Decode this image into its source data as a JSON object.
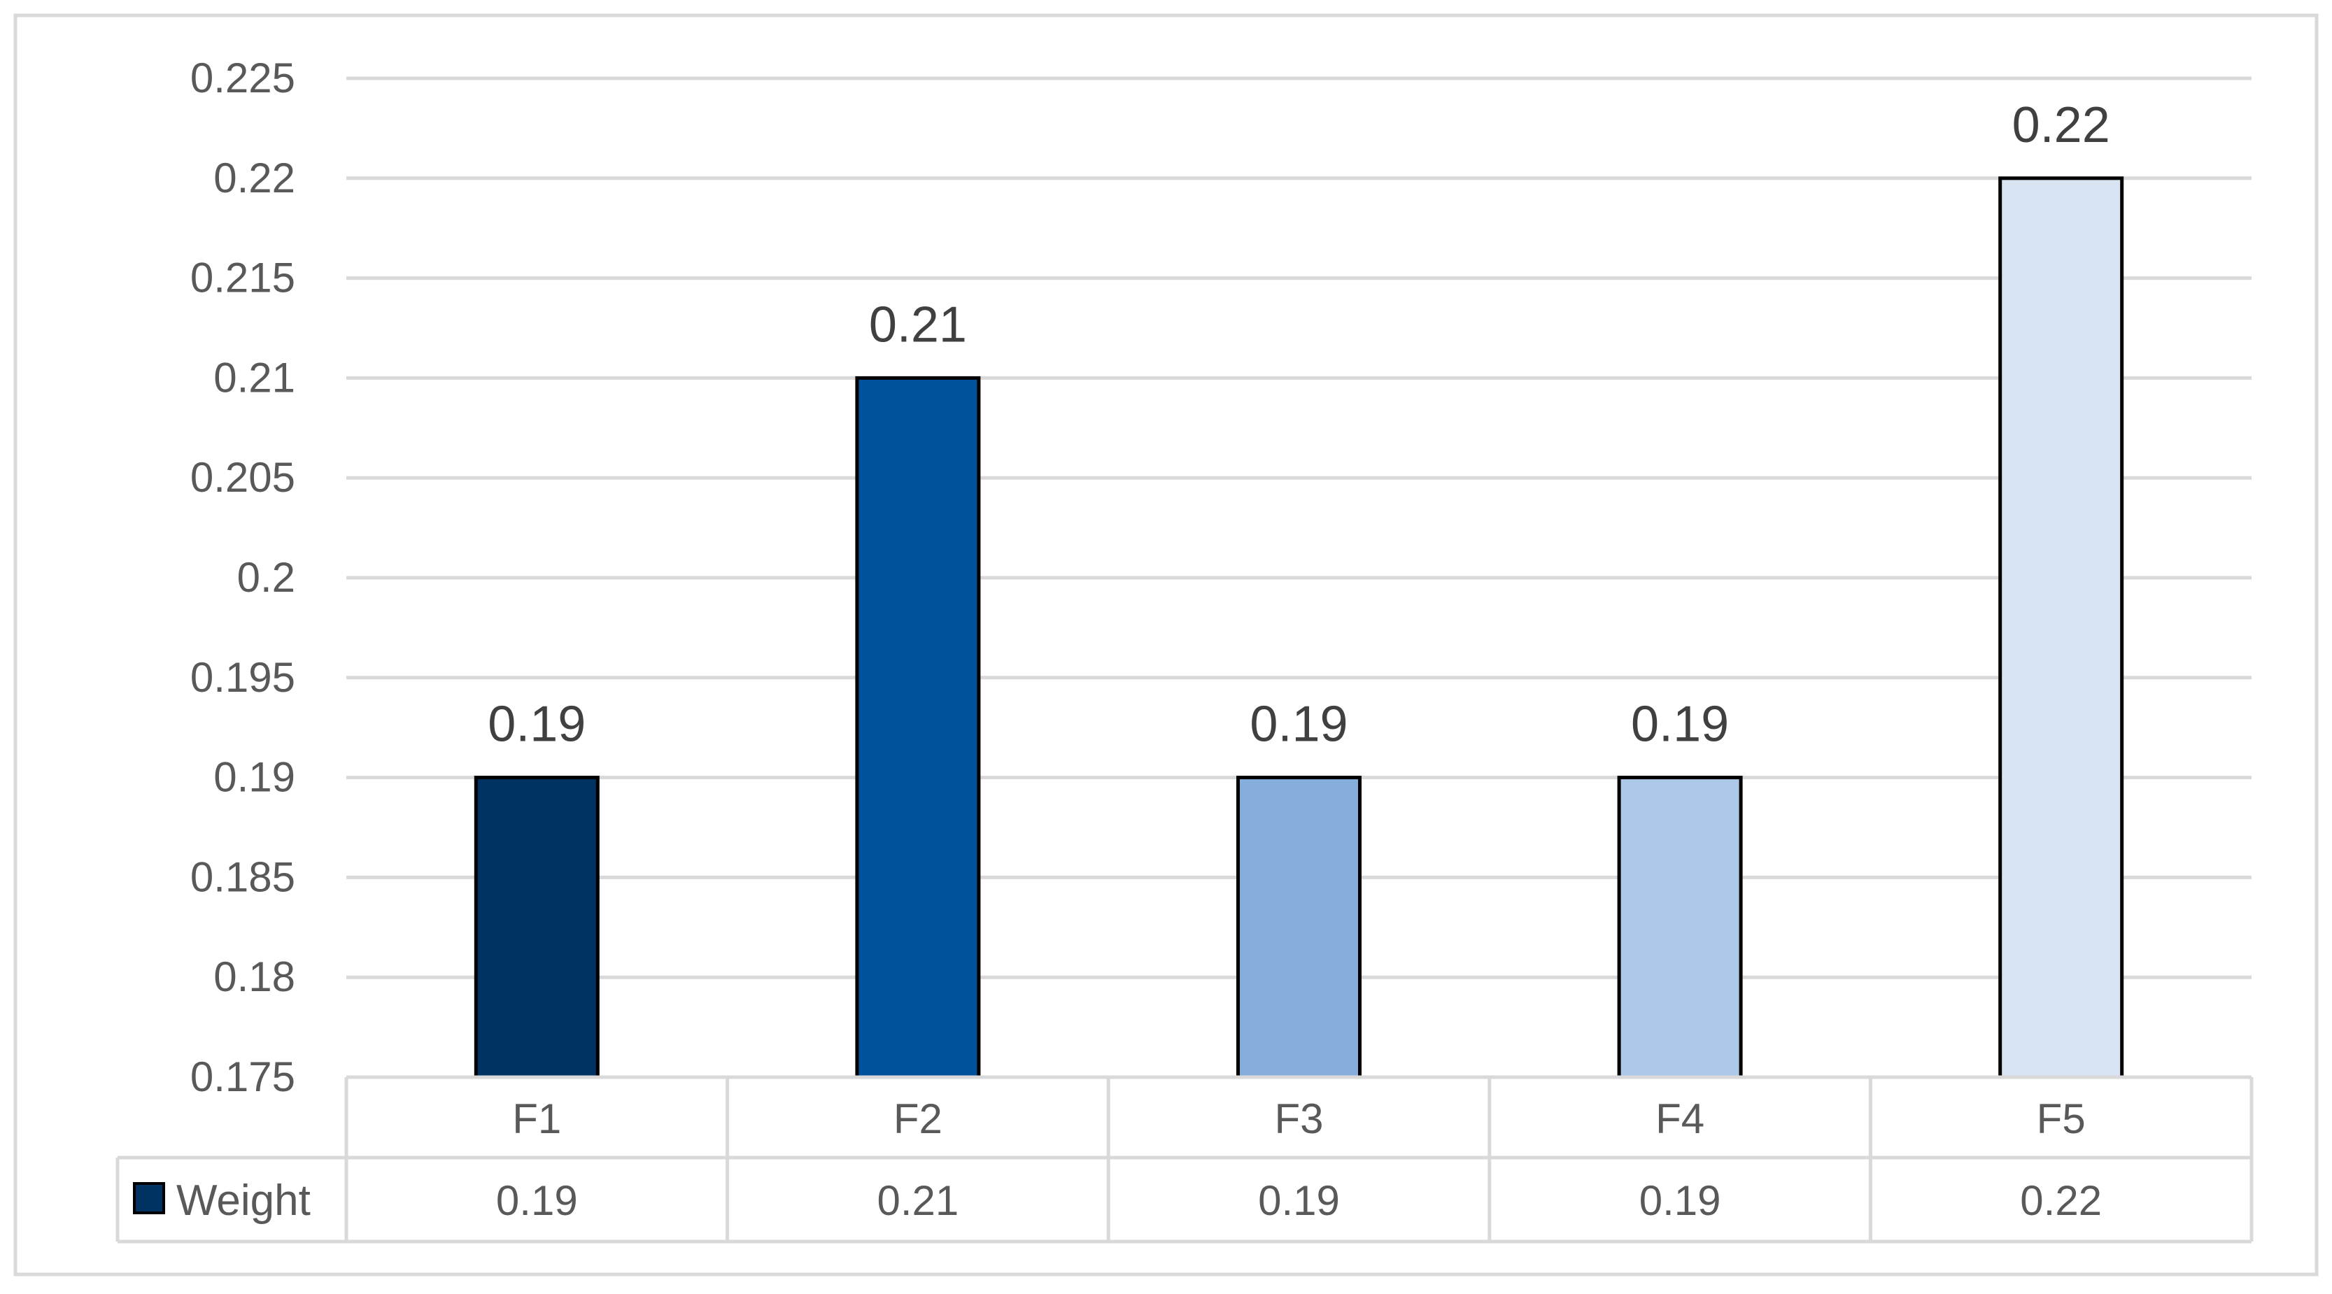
{
  "chart_data": {
    "type": "bar",
    "categories": [
      "F1",
      "F2",
      "F3",
      "F4",
      "F5"
    ],
    "series": [
      {
        "name": "Weight",
        "values": [
          0.19,
          0.21,
          0.19,
          0.19,
          0.22
        ]
      }
    ],
    "data_labels": [
      "0.19",
      "0.21",
      "0.19",
      "0.19",
      "0.22"
    ],
    "ylim": [
      0.175,
      0.225
    ],
    "y_ticks": [
      "0.225",
      "0.22",
      "0.215",
      "0.21",
      "0.205",
      "0.2",
      "0.195",
      "0.19",
      "0.185",
      "0.18",
      "0.175"
    ],
    "grid": true,
    "data_table": {
      "row_label": "Weight",
      "values": [
        "0.19",
        "0.21",
        "0.19",
        "0.19",
        "0.22"
      ]
    },
    "bar_colors": [
      "#003361",
      "#00529b",
      "#86aedc",
      "#adc8e8",
      "#d9e4f2"
    ],
    "legend_key_color": "#003361"
  }
}
